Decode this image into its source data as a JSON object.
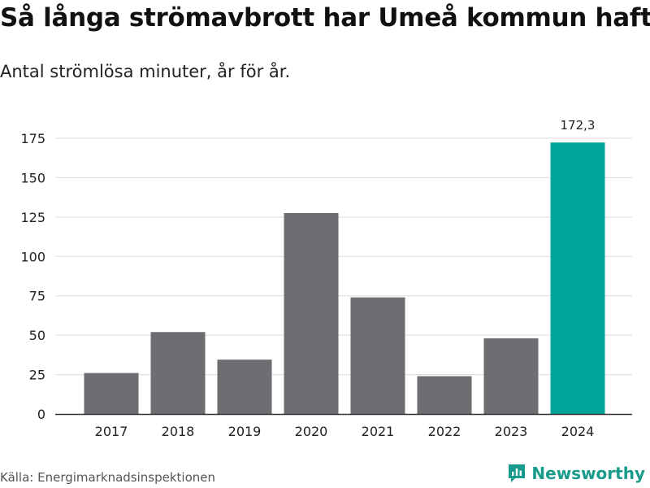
{
  "header": {
    "title": "Så långa strömavbrott har Umeå kommun haft",
    "subtitle": "Antal strömlösa minuter, år för år."
  },
  "footer": {
    "source": "Källa: Energimarknadsinspektionen",
    "brand": "Newsworthy"
  },
  "colors": {
    "bar": "#6e6d72",
    "highlight": "#00a59a",
    "grid": "#dcdcdc",
    "axis": "#333333",
    "brand": "#199b8c"
  },
  "chart_data": {
    "type": "bar",
    "title": "Så långa strömavbrott har Umeå kommun haft",
    "subtitle": "Antal strömlösa minuter, år för år.",
    "xlabel": "",
    "ylabel": "",
    "categories": [
      "2017",
      "2018",
      "2019",
      "2020",
      "2021",
      "2022",
      "2023",
      "2024"
    ],
    "values": [
      26,
      52,
      34.5,
      127.5,
      74,
      24,
      48,
      172.3
    ],
    "highlight_index": 7,
    "data_labels": [
      {
        "index": 7,
        "text": "172,3"
      }
    ],
    "yticks": [
      0,
      25,
      50,
      75,
      100,
      125,
      150,
      175
    ],
    "ylim": [
      0,
      185
    ],
    "grid": true
  }
}
